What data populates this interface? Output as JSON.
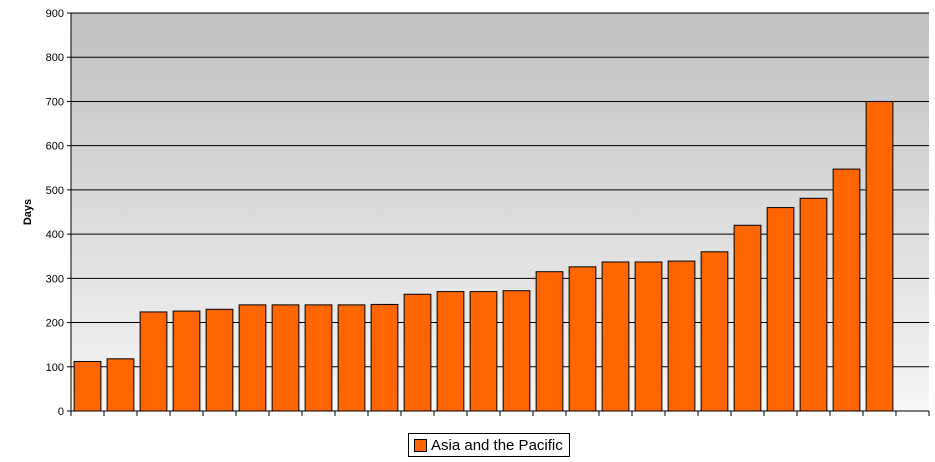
{
  "chart_data": {
    "type": "bar",
    "ylabel": "Days",
    "ylim": [
      0,
      900
    ],
    "yticks": [
      0,
      100,
      200,
      300,
      400,
      500,
      600,
      700,
      800,
      900
    ],
    "grid": true,
    "legend_position": "bottom",
    "bar_color": "#ff6600",
    "series": [
      {
        "name": "Asia and the Pacific",
        "values": [
          112,
          118,
          224,
          226,
          230,
          240,
          240,
          240,
          240,
          241,
          264,
          270,
          270,
          272,
          315,
          326,
          337,
          337,
          339,
          360,
          420,
          460,
          481,
          547,
          700
        ]
      }
    ]
  }
}
